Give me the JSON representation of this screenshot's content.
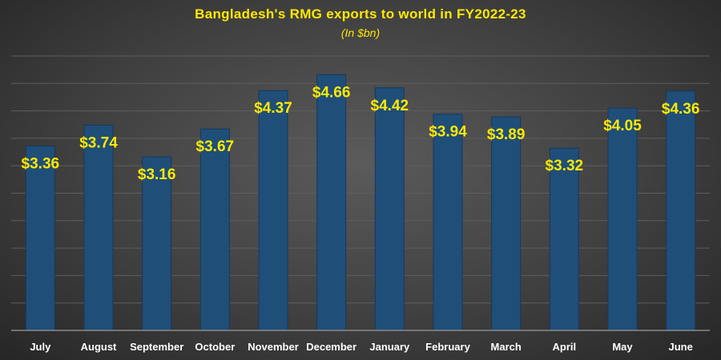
{
  "chart_data": {
    "type": "bar",
    "title": "Bangladesh's RMG exports to world in FY2022-23",
    "subtitle": "(In $bn)",
    "categories": [
      "July",
      "August",
      "September",
      "October",
      "November",
      "December",
      "January",
      "February",
      "March",
      "April",
      "May",
      "June"
    ],
    "values": [
      3.36,
      3.74,
      3.16,
      3.67,
      4.37,
      4.66,
      4.42,
      3.94,
      3.89,
      3.32,
      4.05,
      4.36
    ],
    "data_labels": [
      "$3.36",
      "$3.74",
      "$3.16",
      "$3.67",
      "$4.37",
      "$4.66",
      "$4.42",
      "$3.94",
      "$3.89",
      "$3.32",
      "$4.05",
      "$4.36"
    ],
    "xlabel": "",
    "ylabel": "",
    "ylim": [
      0,
      5
    ],
    "grid": true,
    "legend": "none",
    "colors": {
      "bar": "#1f4e79",
      "bar_edge": "#16395a",
      "label": "#ffe800",
      "tick": "#ffffff",
      "grid": "#5e5e5e"
    }
  }
}
